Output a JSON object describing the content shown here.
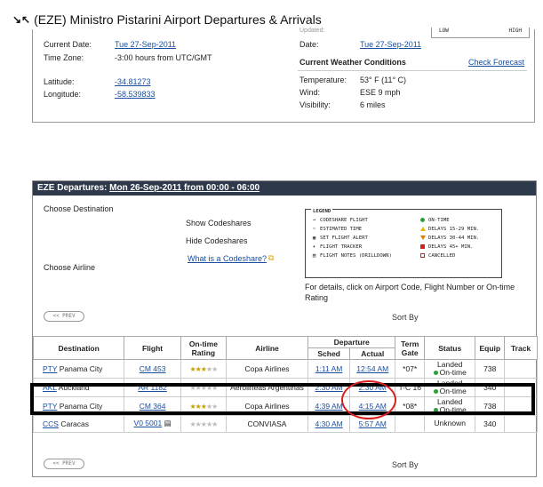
{
  "page": {
    "title": "(EZE) Ministro Pistarini Airport Departures & Arrivals"
  },
  "info": {
    "current_date_label": "Current Date:",
    "current_date_value": "Tue 27-Sep-2011",
    "timezone_label": "Time Zone:",
    "timezone_value": "-3:00 hours from UTC/GMT",
    "latitude_label": "Latitude:",
    "latitude_value": "-34.81273",
    "longitude_label": "Longitude:",
    "longitude_value": "-58.539833",
    "updated_label": "Updated:",
    "date_label": "Date:",
    "date_value": "Tue 27-Sep-2011",
    "low_label": "LOW",
    "high_label": "HIGH",
    "weather_title": "Current Weather Conditions",
    "check_forecast": "Check Forecast",
    "temperature_label": "Temperature:",
    "temperature_value": "53° F (11° C)",
    "wind_label": "Wind:",
    "wind_value": "ESE 9 mph",
    "visibility_label": "Visibility:",
    "visibility_value": "6 miles"
  },
  "departures": {
    "header_prefix": "EZE Departures:",
    "header_link": "Mon 26-Sep-2011 from 00:00 - 06:00",
    "choose_destination": "Choose Destination",
    "choose_airline": "Choose Airline",
    "show_codeshares": "Show Codeshares",
    "hide_codeshares": "Hide Codeshares",
    "what_is_codeshare": "What is a Codeshare?",
    "legend": {
      "title": "LEGEND",
      "left": [
        {
          "icon": "codeshare-icon",
          "glyph": "→",
          "label": "CODESHARE FLIGHT"
        },
        {
          "icon": "estimated-time-icon",
          "glyph": "~",
          "label": "ESTIMATED TIME"
        },
        {
          "icon": "set-alert-icon",
          "glyph": "▣",
          "label": "SET FLIGHT ALERT"
        },
        {
          "icon": "flight-tracker-icon",
          "glyph": "✈",
          "label": "FLIGHT TRACKER"
        },
        {
          "icon": "flight-notes-icon",
          "glyph": "▤",
          "label": "FLIGHT NOTES (DRILLDOWN)"
        }
      ],
      "right": [
        {
          "icon": "on-time-icon",
          "kind": "dot",
          "color": "#2da035",
          "label": "ON-TIME"
        },
        {
          "icon": "delay-15-icon",
          "kind": "tri-up",
          "color": "#e6b800",
          "label": "DELAYS 15-29 MIN."
        },
        {
          "icon": "delay-30-icon",
          "kind": "tri-down",
          "color": "#e07a00",
          "label": "DELAYS 30-44 MIN."
        },
        {
          "icon": "delay-45-icon",
          "kind": "sq",
          "color": "#d42020",
          "label": "DELAYS 45+ MIN."
        },
        {
          "icon": "cancelled-icon",
          "kind": "sqx",
          "color": "#d42020",
          "label": "CANCELLED"
        }
      ]
    },
    "details_note": "For details, click on Airport Code, Flight Number or On-time Rating",
    "prev_label": "<< PREV",
    "sort_by": "Sort By",
    "columns": {
      "destination": "Destination",
      "flight": "Flight",
      "ontime_rating": "On-time Rating",
      "airline": "Airline",
      "departure": "Departure",
      "sched": "Sched",
      "actual": "Actual",
      "term_gate": "Term Gate",
      "status": "Status",
      "equip": "Equip",
      "track": "Track"
    },
    "rows": [
      {
        "code": "PTY",
        "city": "Panama City",
        "flight": "CM 453",
        "stars": 3,
        "airline": "Copa Airlines",
        "sched": "1:11 AM",
        "actual": "12:54 AM",
        "gate": "*07*",
        "status1": "Landed",
        "status2": "On-time",
        "equip": "738"
      },
      {
        "code": "AKL",
        "city": "Auckland",
        "flight": "AR 1182",
        "stars": 0,
        "airline": "Aerolineas Argentinas",
        "sched": "2:30 AM",
        "actual": "2:30 AM",
        "gate": "T-C 16",
        "status1": "Landed",
        "status2": "On-time",
        "equip": "340"
      },
      {
        "code": "PTY",
        "city": "Panama City",
        "flight": "CM 364",
        "stars": 3,
        "airline": "Copa Airlines",
        "sched": "4:39 AM",
        "actual": "4:15 AM",
        "gate": "*08*",
        "status1": "Landed",
        "status2": "On-time",
        "equip": "738"
      },
      {
        "code": "CCS",
        "city": "Caracas",
        "flight": "V0 5001",
        "stars": 0,
        "airline": "CONVIASA",
        "sched": "4:30 AM",
        "actual": "5:57 AM",
        "gate": "",
        "status1": "Unknown",
        "status2": "",
        "equip": "340"
      }
    ]
  }
}
